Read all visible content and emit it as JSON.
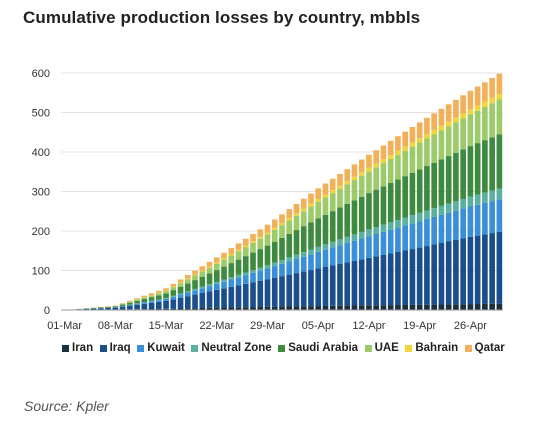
{
  "chart_data": {
    "type": "bar",
    "stacked": true,
    "title": "Cumulative production losses by country, mbbls",
    "xlabel": "",
    "ylabel": "",
    "ylim": [
      0,
      600
    ],
    "yticks": [
      0,
      100,
      200,
      300,
      400,
      500,
      600
    ],
    "grid": true,
    "legend_position": "bottom",
    "x_ticks": [
      "01-Mar",
      "08-Mar",
      "15-Mar",
      "22-Mar",
      "29-Mar",
      "05-Apr",
      "12-Apr",
      "19-Apr",
      "26-Apr"
    ],
    "x_start": "01-Mar",
    "x_end": "30-Apr",
    "series": [
      {
        "name": "Iran",
        "color": "#1c2f3f",
        "keys": [
          [
            1,
            0
          ],
          [
            8,
            1
          ],
          [
            15,
            3
          ],
          [
            22,
            6
          ],
          [
            29,
            8
          ],
          [
            36,
            10
          ],
          [
            43,
            12
          ],
          [
            50,
            13
          ],
          [
            57,
            15
          ],
          [
            61,
            16
          ]
        ]
      },
      {
        "name": "Iraq",
        "color": "#1a4f8c",
        "keys": [
          [
            1,
            0
          ],
          [
            8,
            5
          ],
          [
            15,
            20
          ],
          [
            22,
            45
          ],
          [
            29,
            70
          ],
          [
            36,
            95
          ],
          [
            43,
            120
          ],
          [
            50,
            145
          ],
          [
            57,
            170
          ],
          [
            61,
            182
          ]
        ]
      },
      {
        "name": "Kuwait",
        "color": "#3b8fd6",
        "keys": [
          [
            1,
            0
          ],
          [
            8,
            1
          ],
          [
            15,
            5
          ],
          [
            22,
            15
          ],
          [
            29,
            27
          ],
          [
            36,
            42
          ],
          [
            43,
            55
          ],
          [
            50,
            67
          ],
          [
            57,
            77
          ],
          [
            61,
            82
          ]
        ]
      },
      {
        "name": "Neutral Zone",
        "color": "#5ab1a0",
        "keys": [
          [
            1,
            0
          ],
          [
            8,
            0
          ],
          [
            15,
            2
          ],
          [
            22,
            5
          ],
          [
            29,
            8
          ],
          [
            36,
            13
          ],
          [
            43,
            17
          ],
          [
            50,
            21
          ],
          [
            57,
            25
          ],
          [
            61,
            27
          ]
        ]
      },
      {
        "name": "Saudi Arabia",
        "color": "#3e8a3e",
        "keys": [
          [
            1,
            0
          ],
          [
            8,
            2
          ],
          [
            15,
            12
          ],
          [
            22,
            30
          ],
          [
            29,
            50
          ],
          [
            36,
            72
          ],
          [
            43,
            92
          ],
          [
            50,
            110
          ],
          [
            57,
            128
          ],
          [
            61,
            138
          ]
        ]
      },
      {
        "name": "UAE",
        "color": "#9ccb6a",
        "keys": [
          [
            1,
            0
          ],
          [
            8,
            1
          ],
          [
            15,
            6
          ],
          [
            22,
            16
          ],
          [
            29,
            28
          ],
          [
            36,
            42
          ],
          [
            43,
            55
          ],
          [
            50,
            68
          ],
          [
            57,
            80
          ],
          [
            61,
            88
          ]
        ]
      },
      {
        "name": "Bahrain",
        "color": "#f2d53c",
        "keys": [
          [
            1,
            0
          ],
          [
            8,
            0
          ],
          [
            15,
            1
          ],
          [
            22,
            3
          ],
          [
            29,
            5
          ],
          [
            36,
            7
          ],
          [
            43,
            9
          ],
          [
            50,
            11
          ],
          [
            57,
            13
          ],
          [
            61,
            14
          ]
        ]
      },
      {
        "name": "Qatar",
        "color": "#f2b05a",
        "keys": [
          [
            1,
            0
          ],
          [
            8,
            1
          ],
          [
            15,
            6
          ],
          [
            22,
            13
          ],
          [
            29,
            20
          ],
          [
            36,
            27
          ],
          [
            43,
            33
          ],
          [
            50,
            40
          ],
          [
            57,
            47
          ],
          [
            61,
            51
          ]
        ]
      }
    ]
  },
  "source": "Source: Kpler"
}
